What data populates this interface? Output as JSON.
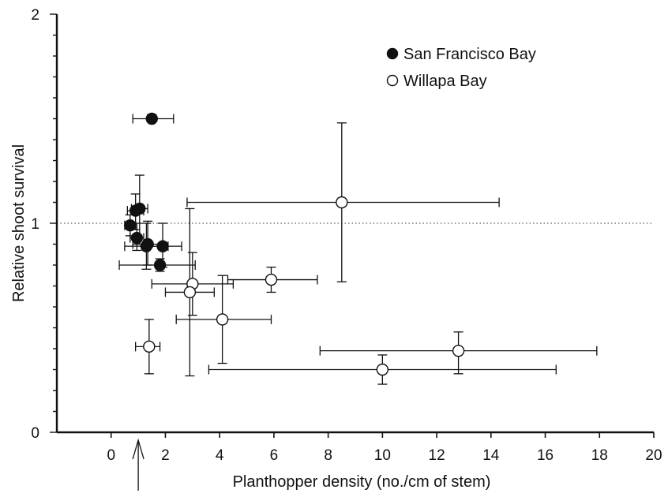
{
  "chart_data": {
    "type": "scatter",
    "xlabel": "Planthopper density (no./cm of stem)",
    "ylabel": "Relative shoot survival",
    "xlim": [
      -2,
      20
    ],
    "ylim": [
      0,
      2
    ],
    "xticks": [
      0,
      2,
      4,
      6,
      8,
      10,
      12,
      14,
      16,
      18,
      20
    ],
    "yticks": [
      0,
      1,
      2
    ],
    "reference_line_y": 1,
    "arrow_x": 1,
    "grid": false,
    "legend_position": "top-right",
    "series": [
      {
        "name": "San Francisco Bay",
        "marker": "filled-circle",
        "points": [
          {
            "x": 1.5,
            "y": 1.5,
            "xerr": [
              0.8,
              2.3
            ],
            "yerr": [
              1.49,
              1.52
            ]
          },
          {
            "x": 0.9,
            "y": 1.06,
            "xerr": [
              0.6,
              1.2
            ],
            "yerr": [
              0.97,
              1.14
            ]
          },
          {
            "x": 1.05,
            "y": 1.07,
            "xerr": [
              0.75,
              1.35
            ],
            "yerr": [
              0.9,
              1.23
            ]
          },
          {
            "x": 0.7,
            "y": 0.99,
            "xerr": [
              0.5,
              0.9
            ],
            "yerr": [
              0.94,
              1.04
            ]
          },
          {
            "x": 0.95,
            "y": 0.93,
            "xerr": [
              0.7,
              1.2
            ],
            "yerr": [
              0.87,
              1.0
            ]
          },
          {
            "x": 1.3,
            "y": 0.89,
            "xerr": [
              0.5,
              2.1
            ],
            "yerr": [
              0.78,
              1.0
            ]
          },
          {
            "x": 1.35,
            "y": 0.9,
            "xerr": [
              0.8,
              1.9
            ],
            "yerr": [
              0.8,
              1.01
            ]
          },
          {
            "x": 1.9,
            "y": 0.89,
            "xerr": [
              1.4,
              2.6
            ],
            "yerr": [
              0.79,
              1.0
            ]
          },
          {
            "x": 1.8,
            "y": 0.8,
            "xerr": [
              0.3,
              3.1
            ],
            "yerr": [
              0.77,
              0.83
            ]
          }
        ]
      },
      {
        "name": "Willapa Bay",
        "marker": "open-circle",
        "points": [
          {
            "x": 8.5,
            "y": 1.1,
            "xerr": [
              2.8,
              14.3
            ],
            "yerr": [
              0.72,
              1.48
            ]
          },
          {
            "x": 3.0,
            "y": 0.71,
            "xerr": [
              1.5,
              4.5
            ],
            "yerr": [
              0.56,
              0.86
            ]
          },
          {
            "x": 2.9,
            "y": 0.67,
            "xerr": [
              2.0,
              3.8
            ],
            "yerr": [
              0.27,
              1.07
            ]
          },
          {
            "x": 5.9,
            "y": 0.73,
            "xerr": [
              4.3,
              7.6
            ],
            "yerr": [
              0.67,
              0.79
            ]
          },
          {
            "x": 4.1,
            "y": 0.54,
            "xerr": [
              2.4,
              5.9
            ],
            "yerr": [
              0.33,
              0.75
            ]
          },
          {
            "x": 1.4,
            "y": 0.41,
            "xerr": [
              0.9,
              1.8
            ],
            "yerr": [
              0.28,
              0.54
            ]
          },
          {
            "x": 12.8,
            "y": 0.39,
            "xerr": [
              7.7,
              17.9
            ],
            "yerr": [
              0.28,
              0.48
            ]
          },
          {
            "x": 10.0,
            "y": 0.3,
            "xerr": [
              3.6,
              16.4
            ],
            "yerr": [
              0.23,
              0.37
            ]
          }
        ]
      }
    ]
  }
}
